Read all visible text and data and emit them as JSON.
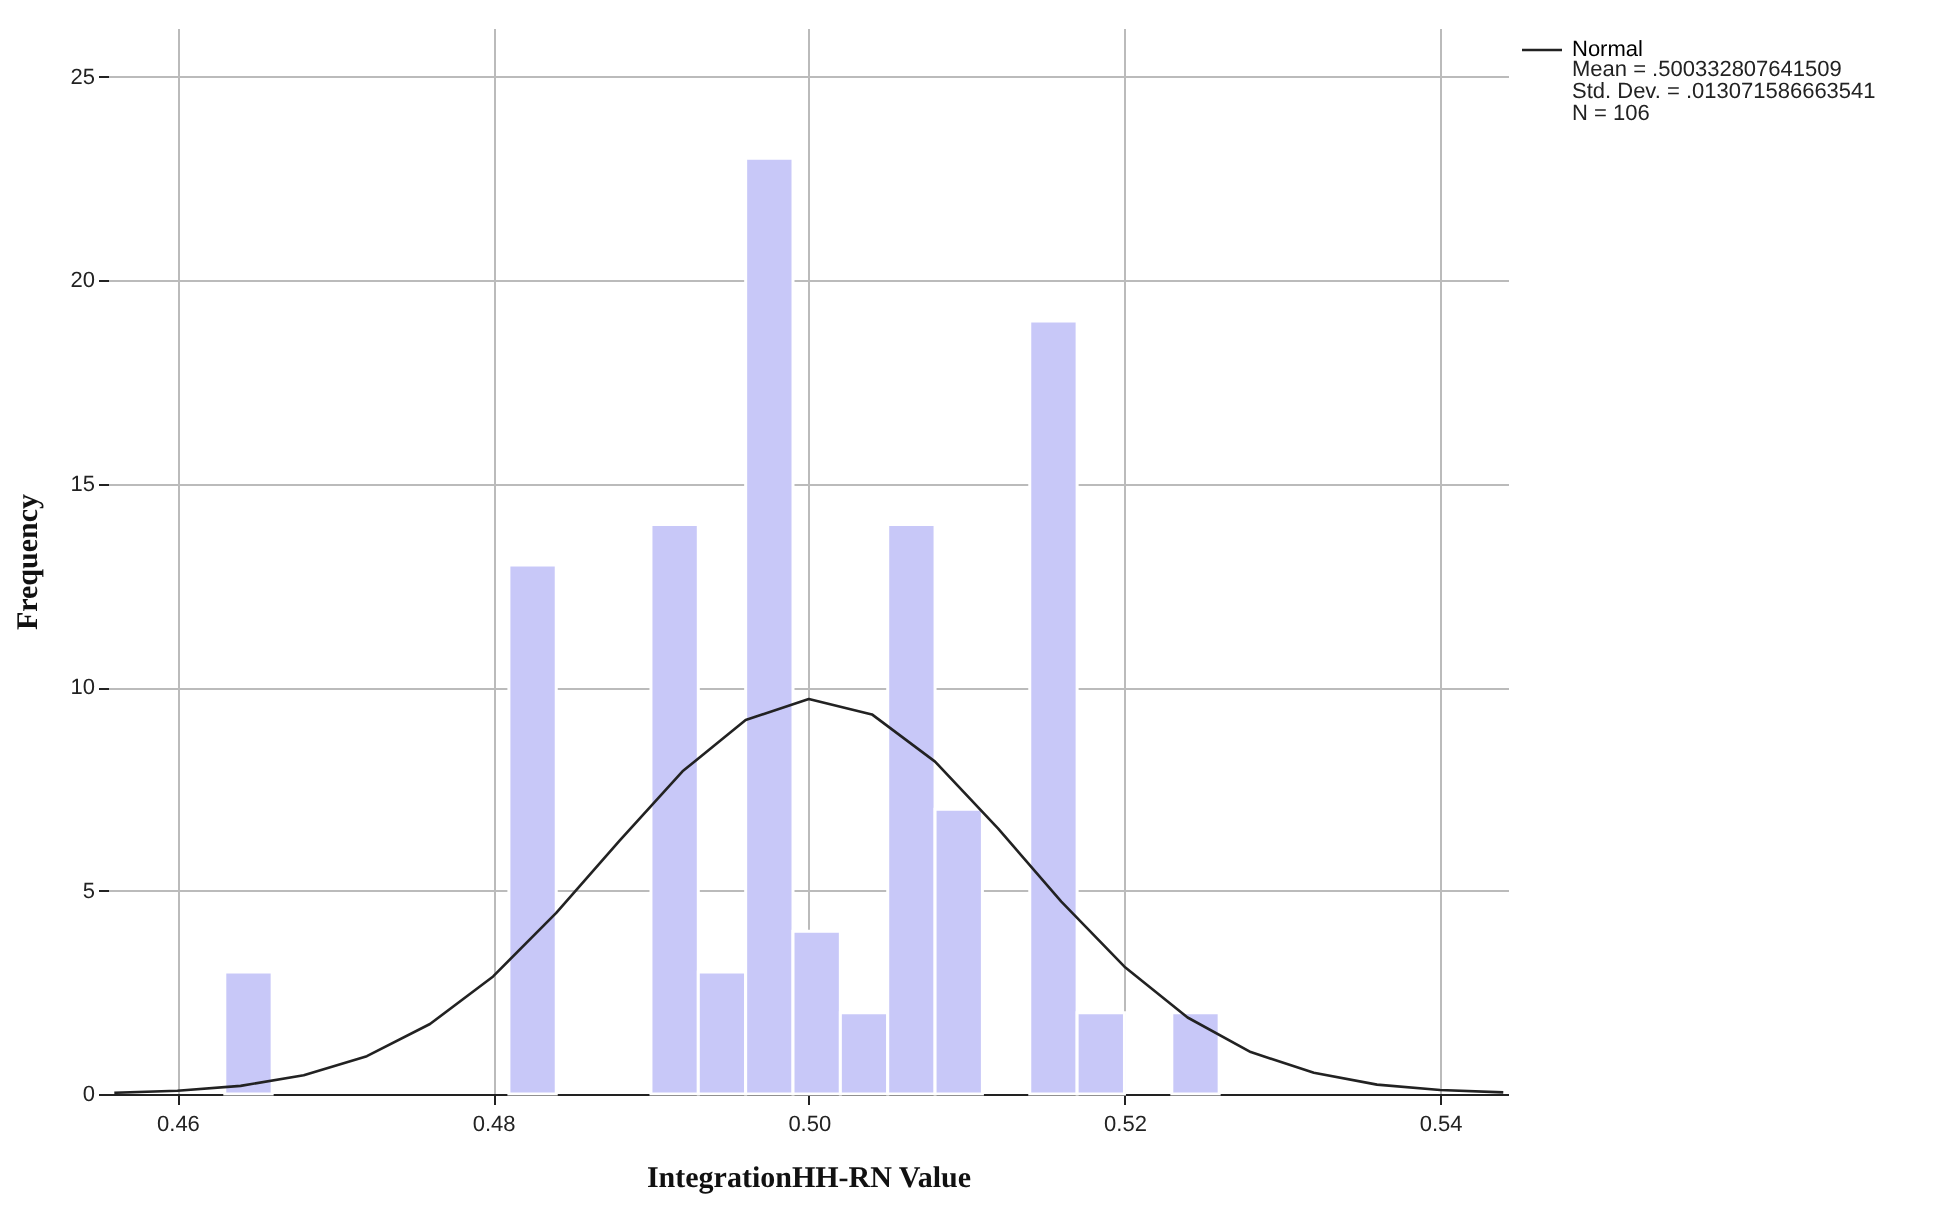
{
  "chart_data": {
    "type": "histogram",
    "xlabel": "IntegrationHH-RN Value",
    "ylabel": "Frequency",
    "bins": [
      0.463,
      0.466,
      0.469,
      0.472,
      0.475,
      0.478,
      0.481,
      0.484,
      0.487,
      0.49,
      0.493,
      0.496,
      0.499,
      0.502,
      0.505,
      0.508,
      0.511,
      0.514,
      0.517,
      0.52,
      0.523,
      0.526
    ],
    "values": [
      3,
      0,
      0,
      0,
      0,
      0,
      13,
      0,
      0,
      14,
      3,
      23,
      4,
      2,
      14,
      7,
      0,
      19,
      2,
      0,
      2
    ],
    "color": "#c8c8f8",
    "series": [
      {
        "name": "Normal",
        "type": "line",
        "color": "#222222",
        "x": [
          0.456,
          0.46,
          0.464,
          0.468,
          0.472,
          0.476,
          0.48,
          0.484,
          0.488,
          0.492,
          0.496,
          0.5,
          0.504,
          0.508,
          0.512,
          0.516,
          0.52,
          0.524,
          0.528,
          0.532,
          0.536,
          0.54,
          0.544
        ],
        "values": [
          0.03,
          0.08,
          0.2,
          0.46,
          0.93,
          1.72,
          2.89,
          4.45,
          6.22,
          7.93,
          9.19,
          9.71,
          9.33,
          8.17,
          6.52,
          4.73,
          3.13,
          1.88,
          1.03,
          0.52,
          0.23,
          0.1,
          0.04
        ]
      }
    ],
    "xlim": [
      0.4556,
      0.5443
    ],
    "xticks": [
      0.46,
      0.48,
      {
        "value": 0.5,
        "label": "0.50"
      },
      0.52,
      0.54
    ],
    "ylim": [
      0,
      26.2
    ],
    "yticks": [
      0,
      5,
      10,
      15,
      20,
      25
    ],
    "grid": true,
    "legend": "top right",
    "annotations": [
      "Mean = .500332807641509",
      "Std. Dev. = .013071586663541",
      "N = 106"
    ]
  }
}
